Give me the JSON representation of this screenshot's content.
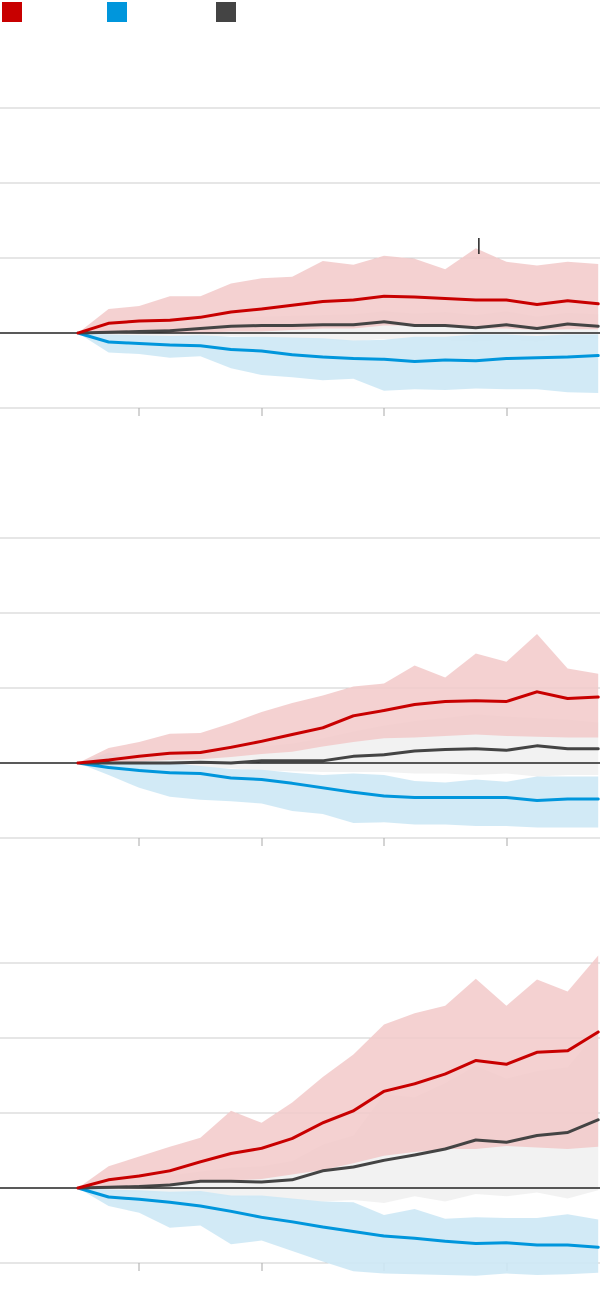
{
  "legend": [
    {
      "label": "",
      "color": "#c80000"
    },
    {
      "label": "",
      "color": "#0096dc"
    },
    {
      "label": "",
      "color": "#444444"
    }
  ],
  "colors": {
    "red": "#c80000",
    "red_band": "#f2c9c9",
    "blue": "#0096dc",
    "blue_band": "#cde8f5",
    "gray": "#444444",
    "gray_band": "#ececec",
    "gridline": "#cccccc",
    "baseline": "#222222"
  },
  "chart_data": [
    {
      "type": "line",
      "title": "",
      "grid": true,
      "ylim": [
        -1,
        3
      ],
      "x": [
        0,
        1,
        2,
        3,
        4,
        5,
        6,
        7,
        8,
        9,
        10,
        11,
        12,
        13,
        14,
        15,
        16,
        17
      ],
      "series": [
        {
          "key": "red",
          "color": "#c80000",
          "values": [
            0,
            0.13,
            0.16,
            0.17,
            0.21,
            0.28,
            0.32,
            0.37,
            0.42,
            0.44,
            0.49,
            0.48,
            0.46,
            0.44,
            0.44,
            0.38,
            0.43,
            0.39
          ],
          "upper": [
            0,
            0.32,
            0.36,
            0.49,
            0.49,
            0.66,
            0.73,
            0.75,
            0.96,
            0.91,
            1.03,
            0.99,
            0.85,
            1.13,
            0.95,
            0.9,
            0.95,
            0.92
          ],
          "lower": [
            0,
            0.02,
            0.02,
            0.0,
            0.0,
            0.02,
            0.02,
            0.04,
            0.06,
            0.06,
            0.1,
            0.1,
            0.08,
            0.06,
            0.06,
            0.04,
            0.05,
            0.05
          ]
        },
        {
          "key": "gray",
          "color": "#444444",
          "values": [
            0,
            0.01,
            0.02,
            0.03,
            0.06,
            0.09,
            0.1,
            0.1,
            0.11,
            0.11,
            0.15,
            0.1,
            0.1,
            0.07,
            0.11,
            0.06,
            0.12,
            0.09
          ],
          "upper": [
            0,
            0.08,
            0.1,
            0.12,
            0.16,
            0.19,
            0.22,
            0.23,
            0.24,
            0.25,
            0.29,
            0.26,
            0.28,
            0.24,
            0.29,
            0.22,
            0.27,
            0.25
          ],
          "lower": [
            0,
            -0.06,
            -0.06,
            -0.06,
            -0.05,
            -0.04,
            -0.05,
            -0.07,
            -0.1,
            -0.11,
            -0.08,
            -0.1,
            -0.1,
            -0.12,
            -0.09,
            -0.12,
            -0.06,
            -0.08
          ]
        },
        {
          "key": "blue",
          "color": "#0096dc",
          "values": [
            0,
            -0.12,
            -0.14,
            -0.16,
            -0.17,
            -0.22,
            -0.24,
            -0.29,
            -0.32,
            -0.34,
            -0.35,
            -0.38,
            -0.36,
            -0.37,
            -0.34,
            -0.33,
            -0.32,
            -0.3
          ],
          "upper": [
            0,
            -0.02,
            -0.03,
            -0.04,
            -0.03,
            -0.05,
            -0.05,
            -0.06,
            -0.07,
            -0.1,
            -0.09,
            -0.05,
            -0.05,
            -0.02,
            -0.02,
            -0.04,
            -0.02,
            -0.02
          ],
          "lower": [
            0,
            -0.26,
            -0.28,
            -0.33,
            -0.31,
            -0.47,
            -0.56,
            -0.59,
            -0.63,
            -0.61,
            -0.77,
            -0.75,
            -0.76,
            -0.74,
            -0.75,
            -0.75,
            -0.79,
            -0.8
          ]
        }
      ],
      "marker_x": 13.1
    },
    {
      "type": "line",
      "title": "",
      "grid": true,
      "ylim": [
        -1,
        3
      ],
      "x": [
        0,
        1,
        2,
        3,
        4,
        5,
        6,
        7,
        8,
        9,
        10,
        11,
        12,
        13,
        14,
        15,
        16,
        17
      ],
      "series": [
        {
          "key": "red",
          "color": "#c80000",
          "values": [
            0,
            0.04,
            0.09,
            0.13,
            0.14,
            0.21,
            0.29,
            0.38,
            0.47,
            0.63,
            0.7,
            0.78,
            0.82,
            0.83,
            0.82,
            0.95,
            0.86,
            0.88
          ],
          "upper": [
            0,
            0.2,
            0.28,
            0.39,
            0.4,
            0.53,
            0.68,
            0.8,
            0.9,
            1.02,
            1.06,
            1.3,
            1.14,
            1.46,
            1.35,
            1.72,
            1.26,
            1.19
          ],
          "lower": [
            0,
            0.01,
            0.02,
            0.04,
            0.05,
            0.08,
            0.12,
            0.15,
            0.22,
            0.28,
            0.33,
            0.34,
            0.36,
            0.38,
            0.36,
            0.35,
            0.34,
            0.34
          ]
        },
        {
          "key": "gray",
          "color": "#444444",
          "values": [
            0,
            0.0,
            0.0,
            0.0,
            0.01,
            0.0,
            0.03,
            0.03,
            0.03,
            0.09,
            0.11,
            0.16,
            0.18,
            0.19,
            0.17,
            0.23,
            0.19,
            0.19
          ],
          "upper": [
            0,
            0.06,
            0.07,
            0.1,
            0.13,
            0.17,
            0.22,
            0.26,
            0.33,
            0.42,
            0.5,
            0.56,
            0.6,
            0.65,
            0.62,
            0.6,
            0.58,
            0.54
          ],
          "lower": [
            0,
            -0.04,
            -0.05,
            -0.05,
            -0.06,
            -0.07,
            -0.1,
            -0.11,
            -0.12,
            -0.12,
            -0.12,
            -0.14,
            -0.14,
            -0.16,
            -0.14,
            -0.18,
            -0.16,
            -0.16
          ]
        },
        {
          "key": "blue",
          "color": "#0096dc",
          "values": [
            0,
            -0.06,
            -0.1,
            -0.13,
            -0.14,
            -0.2,
            -0.22,
            -0.27,
            -0.33,
            -0.39,
            -0.44,
            -0.46,
            -0.46,
            -0.46,
            -0.46,
            -0.5,
            -0.48,
            -0.48
          ],
          "upper": [
            0,
            0.14,
            0.03,
            0.0,
            -0.04,
            -0.08,
            -0.09,
            -0.13,
            -0.16,
            -0.14,
            -0.16,
            -0.24,
            -0.26,
            -0.22,
            -0.25,
            -0.18,
            -0.18,
            -0.18
          ],
          "lower": [
            0,
            -0.16,
            -0.33,
            -0.45,
            -0.49,
            -0.51,
            -0.54,
            -0.64,
            -0.68,
            -0.8,
            -0.79,
            -0.82,
            -0.82,
            -0.84,
            -0.84,
            -0.86,
            -0.86,
            -0.86
          ]
        }
      ]
    },
    {
      "type": "line",
      "title": "",
      "grid": true,
      "ylim": [
        -1,
        3
      ],
      "x": [
        0,
        1,
        2,
        3,
        4,
        5,
        6,
        7,
        8,
        9,
        10,
        11,
        12,
        13,
        14,
        15,
        16,
        17
      ],
      "series": [
        {
          "key": "red",
          "color": "#c80000",
          "values": [
            0,
            0.11,
            0.16,
            0.23,
            0.35,
            0.46,
            0.53,
            0.66,
            0.87,
            1.03,
            1.29,
            1.39,
            1.52,
            1.7,
            1.65,
            1.81,
            1.83,
            2.08
          ],
          "upper": [
            0,
            0.29,
            0.42,
            0.55,
            0.67,
            1.03,
            0.87,
            1.14,
            1.48,
            1.78,
            2.18,
            2.33,
            2.43,
            2.79,
            2.43,
            2.78,
            2.62,
            3.1
          ],
          "lower": [
            0,
            0.01,
            0.04,
            0.05,
            0.08,
            0.1,
            0.12,
            0.18,
            0.24,
            0.33,
            0.43,
            0.48,
            0.52,
            0.52,
            0.56,
            0.54,
            0.52,
            0.55
          ]
        },
        {
          "key": "gray",
          "color": "#444444",
          "values": [
            0,
            0.01,
            0.02,
            0.04,
            0.09,
            0.09,
            0.08,
            0.11,
            0.23,
            0.28,
            0.37,
            0.44,
            0.52,
            0.64,
            0.61,
            0.7,
            0.74,
            0.91
          ],
          "upper": [
            0,
            0.1,
            0.13,
            0.17,
            0.22,
            0.27,
            0.29,
            0.36,
            0.58,
            0.7,
            1.25,
            1.21,
            1.4,
            1.63,
            1.46,
            1.56,
            1.61,
            2.1
          ],
          "lower": [
            0,
            -0.05,
            -0.06,
            -0.08,
            -0.1,
            -0.12,
            -0.14,
            -0.16,
            -0.18,
            -0.16,
            -0.2,
            -0.11,
            -0.18,
            -0.08,
            -0.11,
            -0.06,
            -0.14,
            -0.03
          ]
        },
        {
          "key": "blue",
          "color": "#0096dc",
          "values": [
            0,
            -0.12,
            -0.15,
            -0.19,
            -0.24,
            -0.31,
            -0.39,
            -0.45,
            -0.52,
            -0.58,
            -0.64,
            -0.67,
            -0.71,
            -0.74,
            -0.73,
            -0.76,
            -0.76,
            -0.79
          ],
          "upper": [
            0,
            -0.02,
            -0.03,
            -0.05,
            -0.04,
            -0.1,
            -0.1,
            -0.14,
            -0.18,
            -0.19,
            -0.36,
            -0.28,
            -0.41,
            -0.39,
            -0.4,
            -0.4,
            -0.35,
            -0.42
          ],
          "lower": [
            0,
            -0.24,
            -0.33,
            -0.53,
            -0.5,
            -0.75,
            -0.7,
            -0.84,
            -0.98,
            -1.11,
            -1.14,
            -1.15,
            -1.16,
            -1.17,
            -1.14,
            -1.16,
            -1.15,
            -1.13
          ]
        }
      ]
    }
  ]
}
